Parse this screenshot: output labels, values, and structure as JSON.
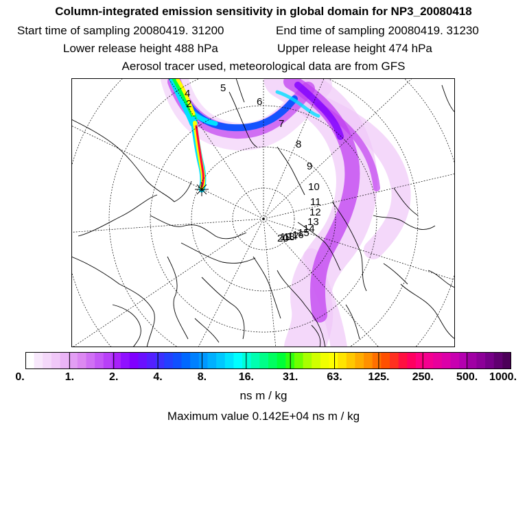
{
  "header": {
    "title": "Column-integrated emission sensitivity in global domain for NP3_20080418",
    "start_time": "Start time of sampling 20080419. 31200",
    "end_time": "End time of sampling 20080419. 31230",
    "lower_height": "Lower release height  488 hPa",
    "upper_height": "Upper release height  474 hPa",
    "tracer_note": "Aerosol tracer used, meteorological data are from GFS"
  },
  "map": {
    "projection": "polar-stereographic-north",
    "release_marker": "release-point-star-icon",
    "plume_colors": [
      "#f0c8f8",
      "#c040f0",
      "#8000ff",
      "#0050ff",
      "#00e0ff",
      "#00ff40",
      "#ffff00",
      "#ff8000",
      "#ff0040"
    ],
    "trajectory_labels": [
      "2",
      "4",
      "5",
      "6",
      "7",
      "8",
      "9",
      "10",
      "11",
      "12",
      "13",
      "14",
      "15",
      "16",
      "17",
      "18",
      "19",
      "20"
    ]
  },
  "colorbar": {
    "colors": [
      "#ffffff",
      "#f8e8fc",
      "#f4d8fa",
      "#f0c8f8",
      "#eab4f6",
      "#e39ef4",
      "#dc88f2",
      "#d070f4",
      "#c458f6",
      "#b840f8",
      "#a820fb",
      "#9010ff",
      "#8000ff",
      "#6a10ff",
      "#5420ff",
      "#3c30ff",
      "#2440ff",
      "#1050ff",
      "#0068ff",
      "#0080ff",
      "#0098ff",
      "#00b0ff",
      "#00c8ff",
      "#00e4ff",
      "#00ffff",
      "#00ffd8",
      "#00ffb0",
      "#00ff88",
      "#00ff60",
      "#00ff38",
      "#30ff10",
      "#70ff00",
      "#a8ff00",
      "#d0ff00",
      "#f0ff00",
      "#ffff00",
      "#ffe400",
      "#ffc800",
      "#ffac00",
      "#ff9000",
      "#ff7000",
      "#ff5000",
      "#ff3020",
      "#ff1040",
      "#ff0060",
      "#ff0080",
      "#f40090",
      "#e8009c",
      "#dc00a8",
      "#c800b0",
      "#b400b0",
      "#a000a4",
      "#8c0098",
      "#760088",
      "#600070",
      "#4c0058"
    ],
    "tick_labels": [
      "0.",
      "1.",
      "2.",
      "4.",
      "8.",
      "16.",
      "31.",
      "63.",
      "125.",
      "250.",
      "500.",
      "1000."
    ],
    "units": "ns m / kg"
  },
  "footer": {
    "max_value": "Maximum value  0.142E+04 ns m / kg"
  }
}
